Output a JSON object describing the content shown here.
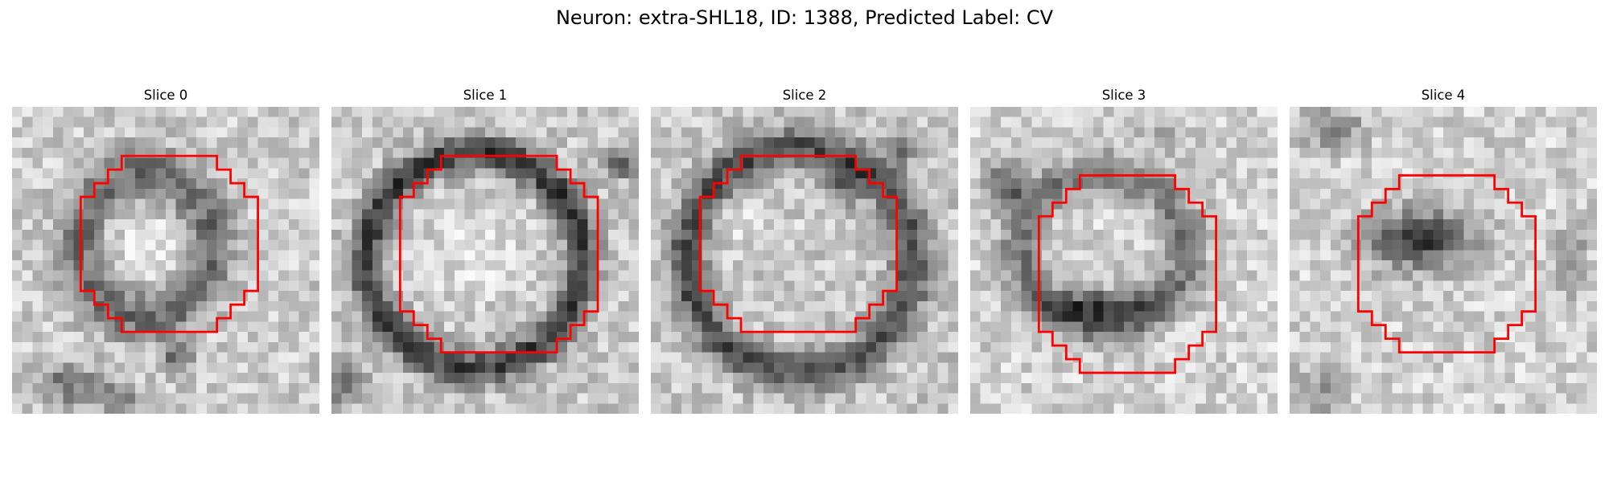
{
  "figure": {
    "title": "Neuron: extra-SHL18, ID: 1388, Predicted Label: CV"
  },
  "panels": [
    {
      "title": "Slice 0"
    },
    {
      "title": "Slice 1"
    },
    {
      "title": "Slice 2"
    },
    {
      "title": "Slice 3"
    },
    {
      "title": "Slice 4"
    }
  ],
  "colors": {
    "outline": "#ff0000",
    "background": "#ffffff"
  },
  "image_style": "grayscale-pixelated"
}
